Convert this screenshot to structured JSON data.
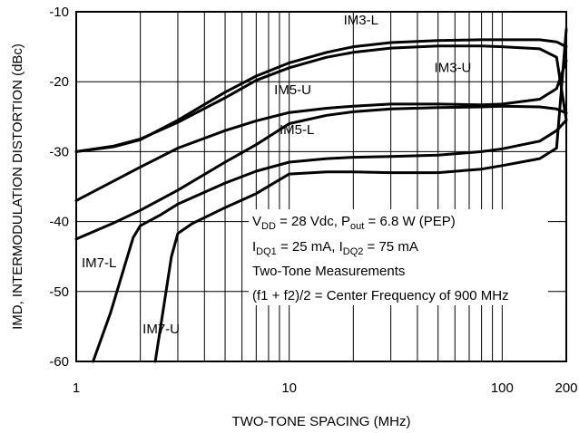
{
  "chart_data": {
    "type": "line",
    "xlabel": "TWO-TONE SPACING (MHz)",
    "ylabel": "IMD, INTERMODULATION DISTORTION (dBc)",
    "x_scale": "log",
    "xlim": [
      1,
      200
    ],
    "ylim": [
      -60,
      -10
    ],
    "x_ticks": [
      {
        "value": 1,
        "label": "1"
      },
      {
        "value": 10,
        "label": "10"
      },
      {
        "value": 100,
        "label": "100"
      },
      {
        "value": 200,
        "label": "200"
      }
    ],
    "y_ticks": [
      {
        "value": -10,
        "label": "-10"
      },
      {
        "value": -20,
        "label": "-20"
      },
      {
        "value": -30,
        "label": "-30"
      },
      {
        "value": -40,
        "label": "-40"
      },
      {
        "value": -50,
        "label": "-50"
      },
      {
        "value": -60,
        "label": "-60"
      }
    ],
    "grid": true,
    "legend": "none",
    "series": [
      {
        "name": "IM3-L",
        "x": [
          1,
          1.5,
          2,
          3,
          5,
          7,
          10,
          15,
          20,
          30,
          50,
          80,
          100,
          150,
          180,
          200
        ],
        "y": [
          -30,
          -29.3,
          -28.3,
          -25.5,
          -21.5,
          -19.2,
          -17.3,
          -15.8,
          -15.0,
          -14.4,
          -14.1,
          -14.0,
          -14.0,
          -14.0,
          -14.3,
          -15
        ]
      },
      {
        "name": "IM3-U",
        "x": [
          1,
          1.5,
          2,
          3,
          5,
          7,
          10,
          15,
          20,
          30,
          50,
          80,
          100,
          150,
          180,
          200
        ],
        "y": [
          -30,
          -29.2,
          -28.2,
          -25.8,
          -22.3,
          -19.8,
          -18.0,
          -16.5,
          -15.8,
          -15.2,
          -14.9,
          -14.9,
          -15.0,
          -15.3,
          -16.5,
          -25.5
        ]
      },
      {
        "name": "IM5-U",
        "x": [
          1,
          1.5,
          2,
          3,
          5,
          7,
          10,
          15,
          20,
          30,
          50,
          80,
          100,
          150,
          180,
          200
        ],
        "y": [
          -37,
          -34.2,
          -32.2,
          -29.5,
          -27.0,
          -25.6,
          -24.4,
          -23.8,
          -23.5,
          -23.2,
          -23.2,
          -23.3,
          -23.2,
          -22.5,
          -21.0,
          -17.0
        ]
      },
      {
        "name": "IM5-L",
        "x": [
          1,
          1.5,
          2,
          3,
          5,
          7,
          10,
          15,
          20,
          30,
          50,
          80,
          100,
          150,
          180,
          200
        ],
        "y": [
          -42.5,
          -40.2,
          -38.4,
          -35.5,
          -31.5,
          -29.0,
          -26.0,
          -24.8,
          -24.3,
          -23.9,
          -23.7,
          -23.6,
          -23.5,
          -23.6,
          -23.9,
          -24.5
        ]
      },
      {
        "name": "IM7-L",
        "x": [
          1.2,
          1.45,
          1.7,
          1.85,
          2.0,
          2.5,
          3,
          5,
          7,
          10,
          15,
          20,
          30,
          50,
          80,
          100,
          150,
          180,
          200
        ],
        "y": [
          -60,
          -53,
          -46,
          -42.3,
          -40.6,
          -39.0,
          -37.5,
          -34.5,
          -32.8,
          -31.5,
          -31.0,
          -30.8,
          -30.7,
          -30.5,
          -30.0,
          -29.6,
          -28.5,
          -27.0,
          -25.5
        ]
      },
      {
        "name": "IM7-U",
        "x": [
          2.35,
          2.55,
          2.8,
          3.0,
          3.5,
          5,
          7,
          10,
          15,
          20,
          30,
          50,
          80,
          100,
          150,
          180,
          200
        ],
        "y": [
          -60,
          -53,
          -45,
          -41.7,
          -40.3,
          -38.0,
          -36.0,
          -33.2,
          -32.9,
          -32.9,
          -33.0,
          -33.0,
          -32.5,
          -32.0,
          -31.0,
          -29.5,
          -12.5
        ]
      }
    ],
    "series_labels": [
      {
        "text": "IM3-L",
        "x": 18,
        "y": -11.8
      },
      {
        "text": "IM3-U",
        "x": 48,
        "y": -18.6
      },
      {
        "text": "IM5-U",
        "x": 8.5,
        "y": -21.8
      },
      {
        "text": "IM5-L",
        "x": 9.0,
        "y": -27.5
      },
      {
        "text": "IM7-L",
        "x": 1.06,
        "y": -46.5
      },
      {
        "text": "IM7-U",
        "x": 2.05,
        "y": -56.0
      }
    ],
    "annotation": {
      "line1_parts": [
        "V",
        "DD",
        " = 28 Vdc, P",
        "out",
        " = 6.8 W (PEP)"
      ],
      "line2_parts": [
        "I",
        "DQ1",
        " = 25 mA, I",
        "DQ2",
        " = 75 mA"
      ],
      "line3": "Two-Tone Measurements",
      "line4": "(f1 + f2)/2 = Center Frequency of 900 MHz"
    }
  }
}
